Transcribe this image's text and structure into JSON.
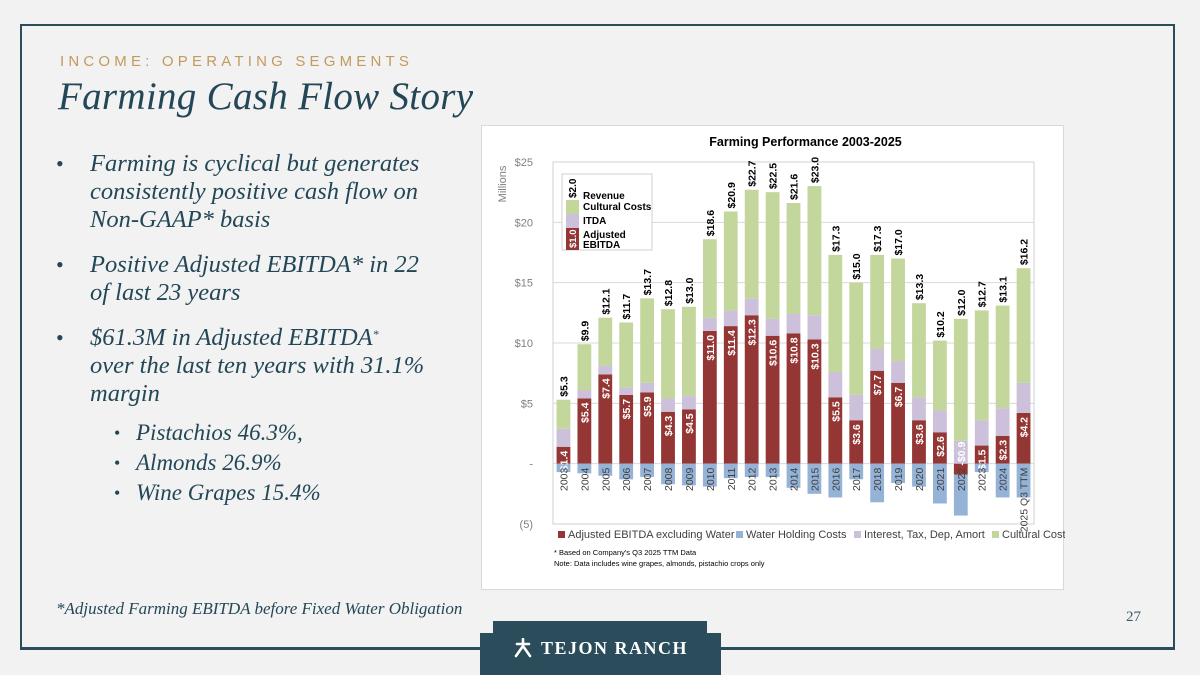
{
  "header": {
    "kicker": "INCOME: OPERATING SEGMENTS",
    "title": "Farming Cash Flow Story"
  },
  "bullets": [
    {
      "text": "Farming is cyclical but generates consistently positive cash flow on Non-GAAP* basis"
    },
    {
      "text": "Positive Adjusted EBITDA* in 22 of last 23 years"
    },
    {
      "text": "$61.3M in Adjusted EBITDA",
      "superscript": "*",
      "text_after": " over the last ten years with 31.1% margin",
      "sub_bullets": [
        "Pistachios 46.3%,",
        "Almonds 26.9%",
        "Wine Grapes 15.4%"
      ]
    }
  ],
  "footnote": "*Adjusted Farming EBITDA before Fixed Water Obligation",
  "page_number": "27",
  "logo": {
    "text": "TEJON RANCH",
    "icon": "tejon-ranch-mark-icon"
  },
  "colors": {
    "ebitda": "#943634",
    "water": "#95b3d7",
    "itda": "#ccc0da",
    "cultural": "#c3d69b",
    "brand_dark": "#2b4c5a",
    "kicker": "#c39a5e"
  },
  "chart_data": {
    "type": "bar",
    "stacked": true,
    "title": "Farming Performance 2003-2025",
    "ylabel": "Millions",
    "xlabel": "",
    "ylim": [
      -5,
      25
    ],
    "yticks": [
      25,
      20,
      15,
      10,
      5,
      0,
      -5
    ],
    "ytick_labels": [
      "$25",
      "$20",
      "$15",
      "$10",
      "$5",
      "-",
      "(5)"
    ],
    "grid": true,
    "categories": [
      "2003",
      "2004",
      "2005",
      "2006",
      "2007",
      "2008",
      "2009",
      "2010",
      "2011",
      "2012",
      "2013",
      "2014",
      "2015",
      "2016",
      "2017",
      "2018",
      "2019",
      "2020",
      "2021",
      "2022",
      "2023",
      "2024",
      "2025 Q3 TTM"
    ],
    "series": [
      {
        "name": "Adjusted EBITDA excluding Water",
        "key": "ebitda",
        "values": [
          1.4,
          5.4,
          7.4,
          5.7,
          5.9,
          4.3,
          4.5,
          11.0,
          11.4,
          12.3,
          10.6,
          10.8,
          10.3,
          5.5,
          3.6,
          7.7,
          6.7,
          3.6,
          2.6,
          -0.9,
          1.5,
          2.3,
          4.2
        ],
        "labels": [
          "$1.4",
          "$5.4",
          "$7.4",
          "$5.7",
          "$5.9",
          "$4.3",
          "$4.5",
          "$11.0",
          "$11.4",
          "$12.3",
          "$10.6",
          "$10.8",
          "$10.3",
          "$5.5",
          "$3.6",
          "$7.7",
          "$6.7",
          "$3.6",
          "$2.6",
          "-$0.9",
          "$1.5",
          "$2.3",
          "$4.2"
        ]
      },
      {
        "name": "Water Holding Costs",
        "key": "water",
        "values": [
          -0.7,
          -0.8,
          -1.0,
          -1.3,
          -1.1,
          -1.7,
          -1.8,
          -1.9,
          -1.2,
          -1.1,
          -1.1,
          -2.0,
          -2.5,
          -2.8,
          -1.3,
          -3.2,
          -1.6,
          -1.9,
          -3.3,
          -3.4,
          -0.7,
          -2.8,
          -2.8
        ]
      },
      {
        "name": "Interest, Tax, Dep, Amort",
        "key": "itda",
        "values": [
          1.5,
          0.7,
          0.7,
          0.6,
          0.8,
          1.1,
          1.1,
          1.1,
          1.3,
          1.4,
          1.4,
          1.6,
          2.0,
          2.1,
          2.1,
          1.8,
          1.8,
          1.9,
          1.8,
          1.9,
          2.1,
          2.3,
          2.5
        ]
      },
      {
        "name": "Cultural Costs",
        "key": "cultural",
        "values": null
      }
    ],
    "revenue_totals": [
      5.3,
      9.9,
      12.1,
      11.7,
      13.7,
      12.8,
      13.0,
      18.6,
      20.9,
      22.7,
      22.5,
      21.6,
      23.0,
      17.3,
      15.0,
      17.3,
      17.0,
      13.3,
      10.2,
      12.0,
      12.7,
      13.1,
      16.2
    ],
    "revenue_labels": [
      "$5.3",
      "$9.9",
      "$12.1",
      "$11.7",
      "$13.7",
      "$12.8",
      "$13.0",
      "$18.6",
      "$20.9",
      "$22.7",
      "$22.5",
      "$21.6",
      "$23.0",
      "$17.3",
      "$15.0",
      "$17.3",
      "$17.0",
      "$13.3",
      "$10.2",
      "$12.0",
      "$12.7",
      "$13.1",
      "$16.2"
    ],
    "legend": {
      "position": "bottom",
      "entries": [
        "Adjusted EBITDA excluding Water",
        "Water Holding Costs",
        "Interest, Tax, Dep, Amort",
        "Cultural Costs"
      ]
    },
    "inset_legend": {
      "position": "top-left",
      "entries": [
        "Revenue",
        "Cultural Costs",
        "ITDA",
        "Adjusted EBITDA"
      ],
      "top_label": "$2.0",
      "bar_label": "$1.0"
    },
    "notes": [
      "* Based on Company's Q3 2025 TTM Data",
      "Note: Data includes wine grapes, almonds, pistachio crops only"
    ]
  }
}
